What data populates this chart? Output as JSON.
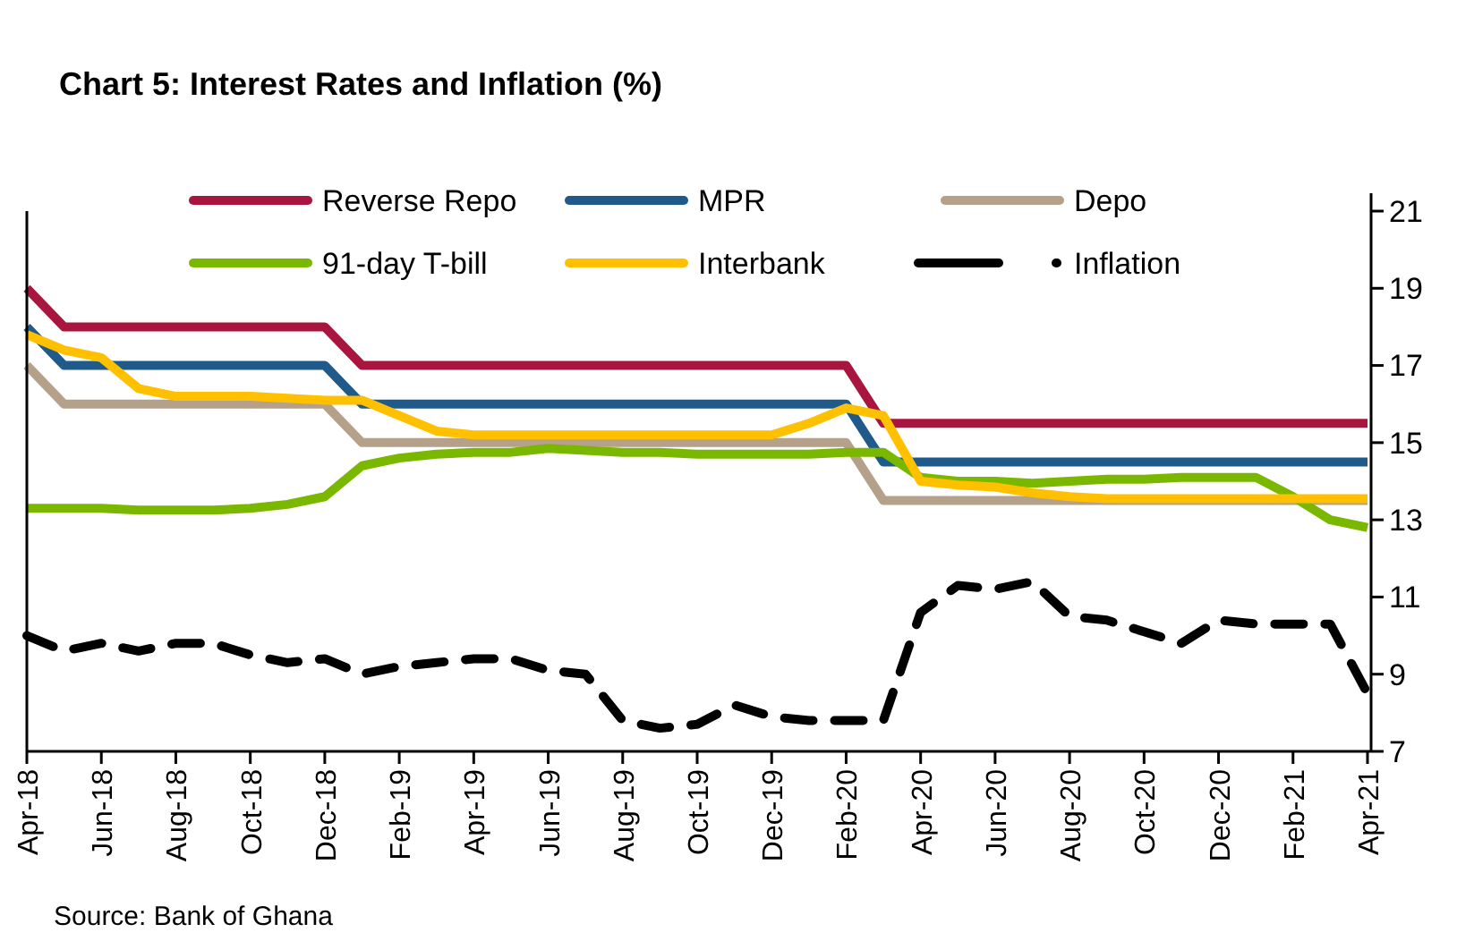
{
  "chart_data": {
    "type": "line",
    "title": "Chart 5: Interest Rates and Inflation (%)",
    "categories": [
      "Apr-18",
      null,
      "Jun-18",
      null,
      "Aug-18",
      null,
      "Oct-18",
      null,
      "Dec-18",
      null,
      "Feb-19",
      null,
      "Apr-19",
      null,
      "Jun-19",
      null,
      "Aug-19",
      null,
      "Oct-19",
      null,
      "Dec-19",
      null,
      "Feb-20",
      null,
      "Apr-20",
      null,
      "Jun-20",
      null,
      "Aug-20",
      null,
      "Oct-20",
      null,
      "Dec-20",
      null,
      "Feb-21",
      null,
      "Apr-21"
    ],
    "series": [
      {
        "name": "Reverse Repo",
        "color": "#a8163f",
        "values": [
          19,
          18,
          18,
          18,
          18,
          18,
          18,
          18,
          18,
          17,
          17,
          17,
          17,
          17,
          17,
          17,
          17,
          17,
          17,
          17,
          17,
          17,
          17,
          15.5,
          15.5,
          15.5,
          15.5,
          15.5,
          15.5,
          15.5,
          15.5,
          15.5,
          15.5,
          15.5,
          15.5,
          15.5,
          15.5
        ]
      },
      {
        "name": "MPR",
        "color": "#1f5a8a",
        "values": [
          18,
          17,
          17,
          17,
          17,
          17,
          17,
          17,
          17,
          16,
          16,
          16,
          16,
          16,
          16,
          16,
          16,
          16,
          16,
          16,
          16,
          16,
          16,
          14.5,
          14.5,
          14.5,
          14.5,
          14.5,
          14.5,
          14.5,
          14.5,
          14.5,
          14.5,
          14.5,
          14.5,
          14.5,
          14.5
        ]
      },
      {
        "name": "Depo",
        "color": "#b5a08a",
        "values": [
          17,
          16,
          16,
          16,
          16,
          16,
          16,
          16,
          16,
          15,
          15,
          15,
          15,
          15,
          15,
          15,
          15,
          15,
          15,
          15,
          15,
          15,
          15,
          13.5,
          13.5,
          13.5,
          13.5,
          13.5,
          13.5,
          13.5,
          13.5,
          13.5,
          13.5,
          13.5,
          13.5,
          13.5,
          13.5
        ]
      },
      {
        "name": "91-day T-bill",
        "color": "#7ab800",
        "values": [
          13.3,
          13.3,
          13.3,
          13.25,
          13.25,
          13.25,
          13.3,
          13.4,
          13.6,
          14.4,
          14.6,
          14.7,
          14.75,
          14.75,
          14.85,
          14.8,
          14.75,
          14.75,
          14.7,
          14.7,
          14.7,
          14.7,
          14.75,
          14.75,
          14.1,
          14.0,
          14.0,
          13.95,
          14.0,
          14.05,
          14.05,
          14.1,
          14.1,
          14.1,
          13.6,
          13.0,
          12.8
        ]
      },
      {
        "name": "Interbank",
        "color": "#ffc000",
        "values": [
          17.8,
          17.4,
          17.2,
          16.4,
          16.2,
          16.2,
          16.2,
          16.15,
          16.1,
          16.1,
          15.7,
          15.3,
          15.2,
          15.2,
          15.2,
          15.2,
          15.2,
          15.2,
          15.2,
          15.2,
          15.2,
          15.5,
          15.9,
          15.7,
          14.0,
          13.9,
          13.85,
          13.7,
          13.6,
          13.55,
          13.55,
          13.55,
          13.55,
          13.55,
          13.55,
          13.55,
          13.55
        ]
      },
      {
        "name": "Inflation",
        "color": "#000000",
        "line_style": "dashed",
        "values": [
          10.0,
          9.6,
          9.8,
          9.6,
          9.8,
          9.8,
          9.5,
          9.3,
          9.4,
          9.0,
          9.2,
          9.3,
          9.4,
          9.4,
          9.1,
          9.0,
          7.8,
          7.6,
          7.7,
          8.2,
          7.9,
          7.8,
          7.8,
          7.8,
          10.6,
          11.3,
          11.2,
          11.4,
          10.5,
          10.4,
          10.1,
          9.8,
          10.4,
          10.3,
          10.3,
          10.3,
          8.5
        ]
      }
    ],
    "ylim": [
      7,
      21
    ],
    "yticks": [
      7,
      9,
      11,
      13,
      15,
      17,
      19,
      21
    ],
    "legend": "top",
    "marker": "none",
    "line_style": "solid",
    "grid": false,
    "annotations": [
      "Source: Bank of Ghana"
    ]
  }
}
